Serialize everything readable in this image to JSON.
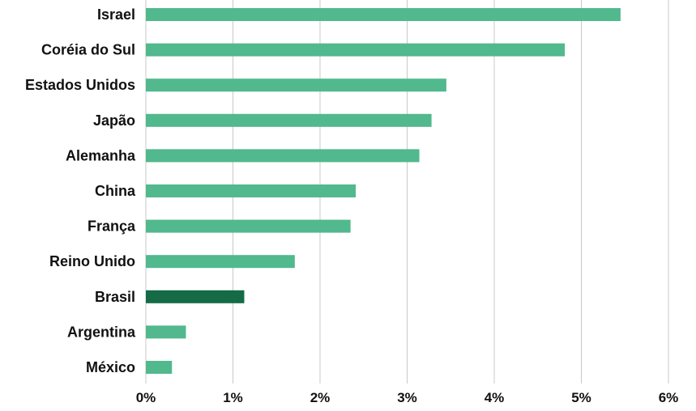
{
  "chart_data": {
    "type": "bar",
    "orientation": "horizontal",
    "categories": [
      "Israel",
      "Coréia do Sul",
      "Estados Unidos",
      "Japão",
      "Alemanha",
      "China",
      "França",
      "Reino Unido",
      "Brasil",
      "Argentina",
      "México"
    ],
    "values": [
      5.45,
      4.81,
      3.45,
      3.28,
      3.14,
      2.41,
      2.35,
      1.71,
      1.13,
      0.46,
      0.3
    ],
    "highlight_category": "Brasil",
    "title": "",
    "xlabel": "",
    "ylabel": "",
    "xlim": [
      0,
      6
    ],
    "x_ticks": [
      0,
      1,
      2,
      3,
      4,
      5,
      6
    ],
    "x_tick_labels": [
      "0%",
      "1%",
      "2%",
      "3%",
      "4%",
      "5%",
      "6%"
    ],
    "grid": "vertical",
    "legend": "none",
    "colors": {
      "bar": "#52b88e",
      "highlight": "#146b46",
      "grid": "#c8c8c8",
      "text": "#111111"
    }
  }
}
